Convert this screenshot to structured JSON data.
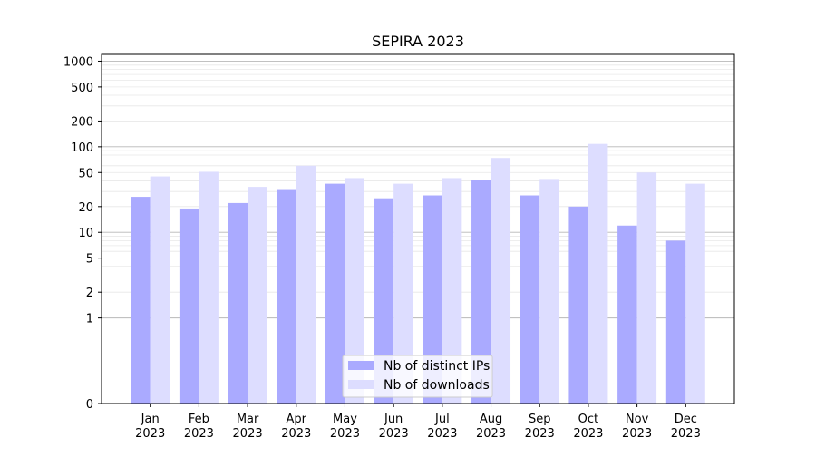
{
  "chart_data": {
    "type": "bar",
    "title": "SEPIRA 2023",
    "xlabel": "",
    "ylabel": "",
    "y_scale": "symlog",
    "ylim": [
      0,
      1200
    ],
    "yticks": [
      0,
      1,
      2,
      5,
      10,
      20,
      50,
      100,
      200,
      500,
      1000
    ],
    "ytick_labels": [
      "0",
      "1",
      "2",
      "5",
      "10",
      "20",
      "50",
      "100",
      "200",
      "500",
      "1000"
    ],
    "categories": [
      "Jan\n2023",
      "Feb\n2023",
      "Mar\n2023",
      "Apr\n2023",
      "May\n2023",
      "Jun\n2023",
      "Jul\n2023",
      "Aug\n2023",
      "Sep\n2023",
      "Oct\n2023",
      "Nov\n2023",
      "Dec\n2023"
    ],
    "series": [
      {
        "name": "Nb of distinct IPs",
        "color": "#aaaaff",
        "values": [
          26,
          19,
          22,
          32,
          37,
          25,
          27,
          41,
          27,
          20,
          12,
          8
        ]
      },
      {
        "name": "Nb of downloads",
        "color": "#ddddff",
        "values": [
          45,
          51,
          34,
          60,
          43,
          37,
          43,
          74,
          42,
          108,
          50,
          37
        ]
      }
    ],
    "grid": true,
    "legend_position": "lower center"
  }
}
